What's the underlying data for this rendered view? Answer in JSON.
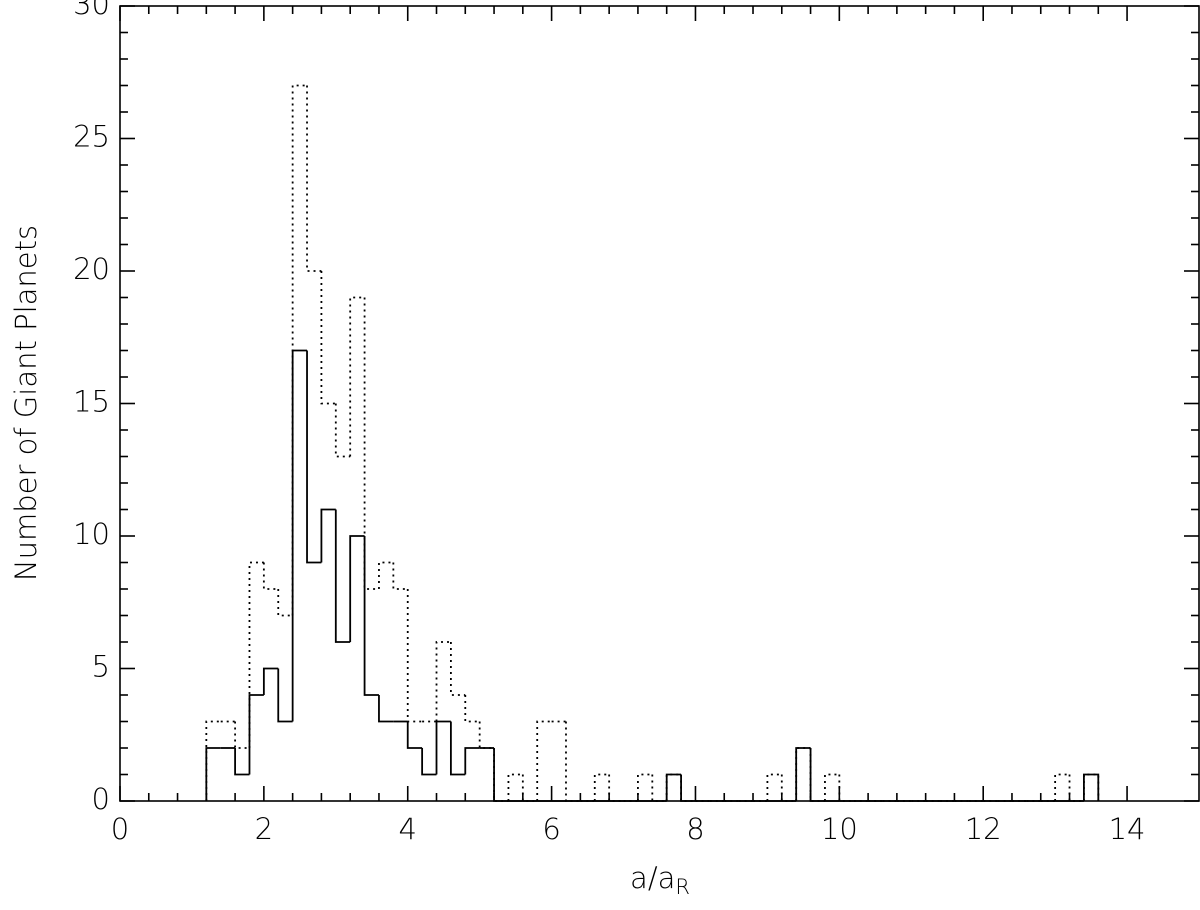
{
  "chart_data": {
    "type": "histogram",
    "xlabel": "a/a",
    "xlabel_subscript": "R",
    "ylabel": "Number of Giant Planets",
    "bins": [
      1.2,
      1.4,
      1.6,
      1.8,
      2.0,
      2.2,
      2.4,
      2.6,
      2.8,
      3.0,
      3.2,
      3.4,
      3.6,
      3.8,
      4.0,
      4.2,
      4.4,
      4.6,
      4.8,
      5.0,
      5.2,
      5.4,
      5.6,
      5.8,
      6.0,
      6.2,
      6.4,
      6.6,
      6.8,
      7.0,
      7.2,
      7.4,
      7.6,
      7.8,
      8.0,
      8.2,
      8.4,
      8.6,
      8.8,
      9.0,
      9.2,
      9.4,
      9.6,
      9.8,
      10.0,
      10.2,
      10.4,
      10.6,
      10.8,
      11.0,
      11.2,
      11.4,
      11.6,
      11.8,
      12.0,
      12.2,
      12.4,
      12.6,
      12.8,
      13.0,
      13.2,
      13.4,
      13.6
    ],
    "series": [
      {
        "style": "dotted",
        "color": "#000000",
        "values": [
          3,
          3,
          2,
          9,
          8,
          7,
          27,
          20,
          15,
          13,
          19,
          8,
          9,
          8,
          3,
          3,
          6,
          4,
          3,
          2,
          0,
          1,
          0,
          3,
          3,
          0,
          0,
          1,
          0,
          0,
          1,
          0,
          1,
          0,
          0,
          0,
          0,
          0,
          0,
          1,
          0,
          2,
          0,
          1,
          0,
          0,
          0,
          0,
          0,
          0,
          0,
          0,
          0,
          0,
          0,
          0,
          0,
          0,
          0,
          1,
          0,
          1
        ]
      },
      {
        "style": "solid",
        "color": "#000000",
        "values": [
          2,
          2,
          1,
          4,
          5,
          3,
          17,
          9,
          11,
          6,
          10,
          4,
          3,
          3,
          2,
          1,
          3,
          1,
          2,
          2,
          0,
          0,
          0,
          0,
          0,
          0,
          0,
          0,
          0,
          0,
          0,
          0,
          1,
          0,
          0,
          0,
          0,
          0,
          0,
          0,
          0,
          2,
          0,
          0,
          0,
          0,
          0,
          0,
          0,
          0,
          0,
          0,
          0,
          0,
          0,
          0,
          0,
          0,
          0,
          0,
          0,
          1
        ]
      }
    ],
    "xlim": [
      0,
      15
    ],
    "ylim": [
      0,
      30
    ],
    "xticks": [
      0,
      2,
      4,
      6,
      8,
      10,
      12,
      14
    ],
    "yticks": [
      0,
      5,
      10,
      15,
      20,
      25,
      30
    ]
  }
}
